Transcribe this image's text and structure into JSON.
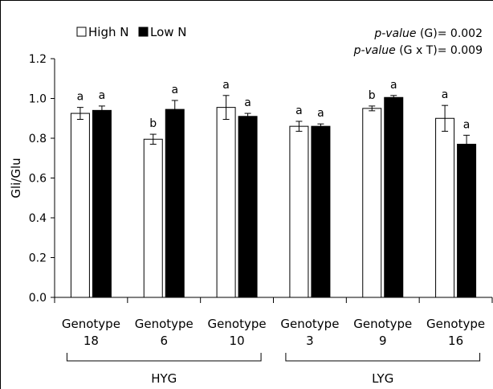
{
  "chart_data": {
    "type": "bar",
    "ylabel": "Gli/Glu",
    "xlabel": "",
    "ylim": [
      0,
      1.2
    ],
    "yticks": [
      "0.0",
      "0.2",
      "0.4",
      "0.6",
      "0.8",
      "1.0",
      "1.2"
    ],
    "categories": [
      {
        "line1": "Genotype",
        "line2": "18"
      },
      {
        "line1": "Genotype",
        "line2": "6"
      },
      {
        "line1": "Genotype",
        "line2": "10"
      },
      {
        "line1": "Genotype",
        "line2": "3"
      },
      {
        "line1": "Genotype",
        "line2": "9"
      },
      {
        "line1": "Genotype",
        "line2": "16"
      }
    ],
    "series": [
      {
        "name": "High N",
        "color": "#ffffff",
        "values": [
          0.925,
          0.795,
          0.955,
          0.86,
          0.95,
          0.9
        ],
        "errors": [
          0.03,
          0.025,
          0.06,
          0.025,
          0.012,
          0.065
        ],
        "letters": [
          "a",
          "b",
          "a",
          "a",
          "b",
          "a"
        ]
      },
      {
        "name": "Low N",
        "color": "#000000",
        "values": [
          0.94,
          0.945,
          0.91,
          0.86,
          1.005,
          0.77
        ],
        "errors": [
          0.022,
          0.045,
          0.015,
          0.012,
          0.01,
          0.045
        ],
        "letters": [
          "a",
          "a",
          "a",
          "a",
          "a",
          "a"
        ]
      }
    ],
    "groups": [
      {
        "label": "HYG",
        "from": 0,
        "to": 2
      },
      {
        "label": "LYG",
        "from": 3,
        "to": 5
      }
    ],
    "legend_position": "top-left",
    "annotations": [
      {
        "italic": "p-value",
        "rest": " (G)= 0.002"
      },
      {
        "italic": "p-value",
        "rest": " (G x T)= 0.009"
      }
    ],
    "grid": false
  }
}
